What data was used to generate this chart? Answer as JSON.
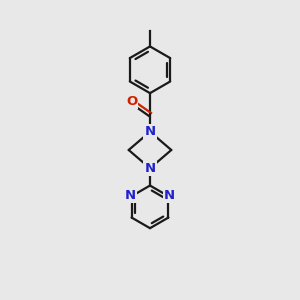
{
  "background_color": "#e8e8e8",
  "bond_color": "#1a1a1a",
  "N_color": "#2222cc",
  "O_color": "#cc2200",
  "line_width": 1.6,
  "figsize": [
    3.0,
    3.0
  ],
  "dpi": 100,
  "xlim": [
    0,
    10
  ],
  "ylim": [
    0,
    14.5
  ]
}
